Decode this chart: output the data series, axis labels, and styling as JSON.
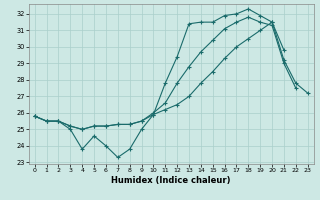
{
  "xlabel": "Humidex (Indice chaleur)",
  "bg_color": "#cde8e4",
  "grid_color": "#aacfcb",
  "line_color": "#1a6b6b",
  "xlim": [
    -0.5,
    23.5
  ],
  "ylim": [
    22.9,
    32.6
  ],
  "yticks": [
    23,
    24,
    25,
    26,
    27,
    28,
    29,
    30,
    31,
    32
  ],
  "xticks": [
    0,
    1,
    2,
    3,
    4,
    5,
    6,
    7,
    8,
    9,
    10,
    11,
    12,
    13,
    14,
    15,
    16,
    17,
    18,
    19,
    20,
    21,
    22,
    23
  ],
  "line1_y": [
    25.8,
    25.5,
    25.5,
    25.0,
    23.8,
    24.6,
    24.0,
    23.3,
    23.8,
    25.0,
    25.9,
    27.8,
    29.4,
    31.4,
    31.5,
    31.5,
    31.9,
    32.0,
    32.3,
    31.9,
    31.5,
    29.8,
    null,
    null
  ],
  "line2_y": [
    25.8,
    25.5,
    25.5,
    25.2,
    25.0,
    25.2,
    25.2,
    25.3,
    25.3,
    25.5,
    26.0,
    26.6,
    27.8,
    28.8,
    29.7,
    30.4,
    31.1,
    31.5,
    31.8,
    31.5,
    31.3,
    29.0,
    27.5,
    null
  ],
  "line3_y": [
    25.8,
    25.5,
    25.5,
    25.2,
    25.0,
    25.2,
    25.2,
    25.3,
    25.3,
    25.5,
    25.9,
    26.2,
    26.5,
    27.0,
    27.8,
    28.5,
    29.3,
    30.0,
    30.5,
    31.0,
    31.5,
    29.2,
    27.8,
    27.2
  ]
}
